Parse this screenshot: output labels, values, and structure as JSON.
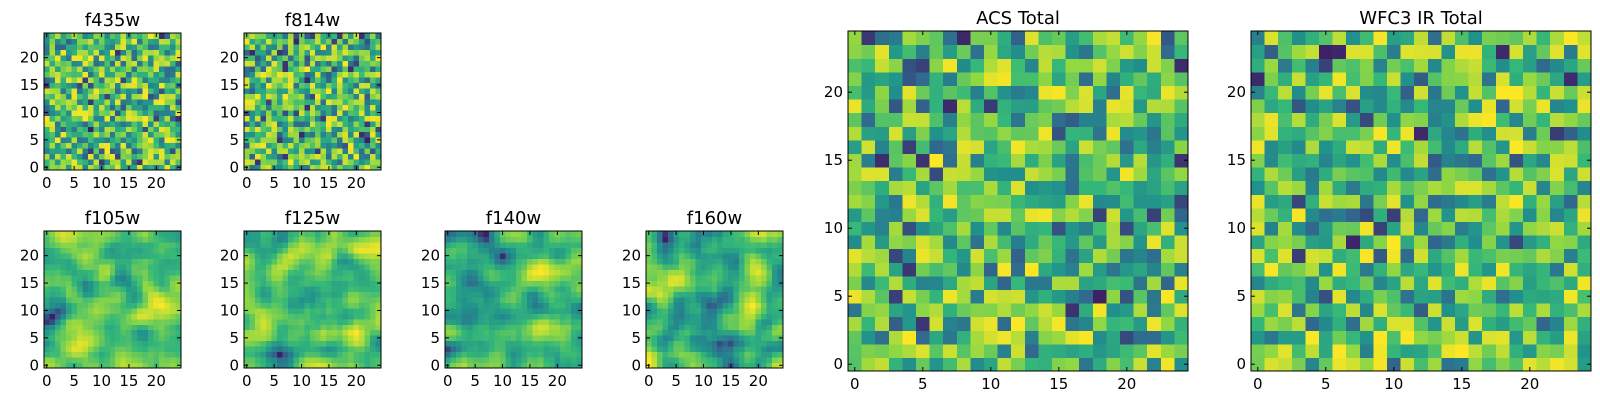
{
  "colormap": [
    "#440154",
    "#31688e",
    "#21918c",
    "#35b779",
    "#90d743",
    "#fde725"
  ],
  "chart_data": [
    {
      "type": "heatmap",
      "title": "f435w",
      "rows": 25,
      "cols": 25,
      "seed": 435,
      "smooth": 0,
      "xticks": [
        "0",
        "5",
        "10",
        "15",
        "20"
      ],
      "yticks": [
        "0",
        "5",
        "10",
        "15",
        "20"
      ],
      "ticks_at": [
        0,
        5,
        10,
        15,
        20
      ]
    },
    {
      "type": "heatmap",
      "title": "f814w",
      "rows": 25,
      "cols": 25,
      "seed": 814,
      "smooth": 0,
      "xticks": [
        "0",
        "5",
        "10",
        "15",
        "20"
      ],
      "yticks": [
        "0",
        "5",
        "10",
        "15",
        "20"
      ],
      "ticks_at": [
        0,
        5,
        10,
        15,
        20
      ]
    },
    {
      "type": "heatmap",
      "title": "f105w",
      "rows": 25,
      "cols": 25,
      "seed": 105,
      "smooth": 1,
      "xticks": [
        "0",
        "5",
        "10",
        "15",
        "20"
      ],
      "yticks": [
        "0",
        "5",
        "10",
        "15",
        "20"
      ],
      "ticks_at": [
        0,
        5,
        10,
        15,
        20
      ]
    },
    {
      "type": "heatmap",
      "title": "f125w",
      "rows": 25,
      "cols": 25,
      "seed": 125,
      "smooth": 1,
      "xticks": [
        "0",
        "5",
        "10",
        "15",
        "20"
      ],
      "yticks": [
        "0",
        "5",
        "10",
        "15",
        "20"
      ],
      "ticks_at": [
        0,
        5,
        10,
        15,
        20
      ]
    },
    {
      "type": "heatmap",
      "title": "f140w",
      "rows": 25,
      "cols": 25,
      "seed": 140,
      "smooth": 1,
      "xticks": [
        "0",
        "5",
        "10",
        "15",
        "20"
      ],
      "yticks": [
        "0",
        "5",
        "10",
        "15",
        "20"
      ],
      "ticks_at": [
        0,
        5,
        10,
        15,
        20
      ]
    },
    {
      "type": "heatmap",
      "title": "f160w",
      "rows": 25,
      "cols": 25,
      "seed": 160,
      "smooth": 1,
      "xticks": [
        "0",
        "5",
        "10",
        "15",
        "20"
      ],
      "yticks": [
        "0",
        "5",
        "10",
        "15",
        "20"
      ],
      "ticks_at": [
        0,
        5,
        10,
        15,
        20
      ]
    },
    {
      "type": "heatmap",
      "title": "ACS Total",
      "rows": 25,
      "cols": 25,
      "seed": 777,
      "smooth": 0,
      "xticks": [
        "0",
        "5",
        "10",
        "15",
        "20"
      ],
      "yticks": [
        "0",
        "5",
        "10",
        "15",
        "20"
      ],
      "xticks_at": [
        0,
        5,
        10,
        15,
        20
      ],
      "ticks_at": [
        0,
        5,
        10,
        15,
        20
      ]
    },
    {
      "type": "heatmap",
      "title": "WFC3 IR Total",
      "rows": 25,
      "cols": 25,
      "seed": 999,
      "smooth": 0,
      "xticks": [
        "0",
        "5",
        "10",
        "15",
        "20"
      ],
      "yticks": [
        "0",
        "5",
        "10",
        "15",
        "20"
      ],
      "ticks_at": [
        0,
        5,
        10,
        15,
        20
      ]
    }
  ]
}
